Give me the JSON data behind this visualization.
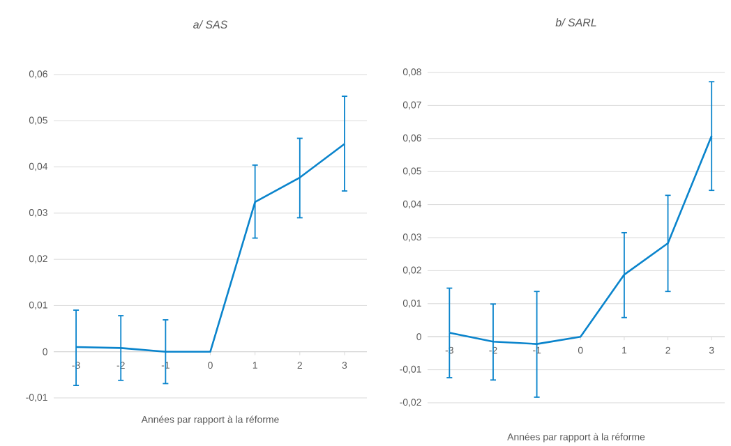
{
  "chart_data": [
    {
      "type": "line",
      "title": "a/ SAS",
      "xlabel": "Années par rapport à la réforme",
      "categories": [
        "-3",
        "-2",
        "-1",
        "0",
        "1",
        "2",
        "3"
      ],
      "series": [
        {
          "color": "#0a84cc",
          "values": [
            0.001,
            0.0008,
            0,
            0,
            0.0324,
            0.0377,
            0.045
          ],
          "errors": [
            [
              -0.0073,
              0.009
            ],
            [
              -0.0062,
              0.0078
            ],
            [
              -0.0069,
              0.0069
            ],
            null,
            [
              0.0246,
              0.0404
            ],
            [
              0.029,
              0.0462
            ],
            [
              0.0348,
              0.0553
            ]
          ]
        }
      ],
      "ylim": [
        -0.01,
        0.06
      ],
      "yticks": [
        {
          "value": -0.01,
          "label": "-0,01"
        },
        {
          "value": 0,
          "label": "0"
        },
        {
          "value": 0.01,
          "label": "0,01"
        },
        {
          "value": 0.02,
          "label": "0,02"
        },
        {
          "value": 0.03,
          "label": "0,03"
        },
        {
          "value": 0.04,
          "label": "0,04"
        },
        {
          "value": 0.05,
          "label": "0,05"
        },
        {
          "value": 0.06,
          "label": "0,06"
        }
      ],
      "grid": "y",
      "line_style": "solid"
    },
    {
      "type": "line",
      "title": "b/ SARL",
      "xlabel": "Années par rapport à la réforme",
      "categories": [
        "-3",
        "-2",
        "-1",
        "0",
        "1",
        "2",
        "3"
      ],
      "series": [
        {
          "color": "#0a84cc",
          "values": [
            0.0012,
            -0.0015,
            -0.0022,
            0,
            0.0188,
            0.0283,
            0.0608
          ],
          "errors": [
            [
              -0.0124,
              0.0147
            ],
            [
              -0.0131,
              0.0099
            ],
            [
              -0.0183,
              0.0137
            ],
            null,
            [
              0.0058,
              0.0315
            ],
            [
              0.0137,
              0.0428
            ],
            [
              0.0443,
              0.0772
            ]
          ]
        }
      ],
      "ylim": [
        -0.02,
        0.08
      ],
      "yticks": [
        {
          "value": -0.02,
          "label": "-0,02"
        },
        {
          "value": -0.01,
          "label": "-0,01"
        },
        {
          "value": 0,
          "label": "0"
        },
        {
          "value": 0.01,
          "label": "0,01"
        },
        {
          "value": 0.02,
          "label": "0,02"
        },
        {
          "value": 0.03,
          "label": "0,03"
        },
        {
          "value": 0.04,
          "label": "0,04"
        },
        {
          "value": 0.05,
          "label": "0,05"
        },
        {
          "value": 0.06,
          "label": "0,06"
        },
        {
          "value": 0.07,
          "label": "0,07"
        },
        {
          "value": 0.08,
          "label": "0,08"
        }
      ],
      "grid": "y",
      "line_style": "solid"
    }
  ]
}
